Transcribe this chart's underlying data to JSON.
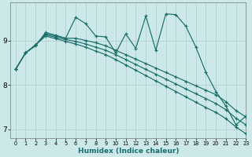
{
  "xlabel": "Humidex (Indice chaleur)",
  "bg_color": "#cce8e8",
  "grid_color": "#b8d8d8",
  "line_color": "#1a6e6a",
  "xlim": [
    -0.5,
    23
  ],
  "ylim": [
    6.8,
    9.85
  ],
  "yticks": [
    7,
    8,
    9
  ],
  "xticks": [
    0,
    1,
    2,
    3,
    4,
    5,
    6,
    7,
    8,
    9,
    10,
    11,
    12,
    13,
    14,
    15,
    16,
    17,
    18,
    19,
    20,
    21,
    22,
    23
  ],
  "lines": [
    {
      "x": [
        0,
        1,
        2,
        3,
        4,
        5,
        6,
        7,
        8,
        9,
        10,
        11,
        12,
        13,
        14,
        15,
        16,
        17,
        18,
        19,
        20,
        21,
        22,
        23
      ],
      "y": [
        8.35,
        8.72,
        8.88,
        9.18,
        9.12,
        9.05,
        9.52,
        9.38,
        9.1,
        9.08,
        8.72,
        9.15,
        8.82,
        9.55,
        8.78,
        9.6,
        9.58,
        9.32,
        8.85,
        8.28,
        7.85,
        7.52,
        7.1,
        7.3
      ]
    },
    {
      "x": [
        0,
        1,
        2,
        3,
        4,
        5,
        6,
        7,
        8,
        9,
        10,
        11,
        12,
        13,
        14,
        15,
        16,
        17,
        18,
        19,
        20,
        21,
        22,
        23
      ],
      "y": [
        8.35,
        8.72,
        8.9,
        9.15,
        9.1,
        9.05,
        9.05,
        9.0,
        8.95,
        8.88,
        8.78,
        8.68,
        8.58,
        8.48,
        8.38,
        8.28,
        8.18,
        8.08,
        7.98,
        7.88,
        7.78,
        7.62,
        7.42,
        7.28
      ]
    },
    {
      "x": [
        0,
        1,
        2,
        3,
        4,
        5,
        6,
        7,
        8,
        9,
        10,
        11,
        12,
        13,
        14,
        15,
        16,
        17,
        18,
        19,
        20,
        21,
        22,
        23
      ],
      "y": [
        8.35,
        8.72,
        8.9,
        9.13,
        9.07,
        9.02,
        8.98,
        8.92,
        8.85,
        8.78,
        8.68,
        8.57,
        8.46,
        8.35,
        8.24,
        8.13,
        8.02,
        7.91,
        7.8,
        7.69,
        7.58,
        7.44,
        7.25,
        7.1
      ]
    },
    {
      "x": [
        0,
        1,
        2,
        3,
        4,
        5,
        6,
        7,
        8,
        9,
        10,
        11,
        12,
        13,
        14,
        15,
        16,
        17,
        18,
        19,
        20,
        21,
        22,
        23
      ],
      "y": [
        8.35,
        8.72,
        8.9,
        9.1,
        9.04,
        8.98,
        8.92,
        8.85,
        8.76,
        8.68,
        8.57,
        8.45,
        8.33,
        8.21,
        8.09,
        7.97,
        7.85,
        7.73,
        7.61,
        7.49,
        7.38,
        7.24,
        7.05,
        6.9
      ]
    }
  ]
}
